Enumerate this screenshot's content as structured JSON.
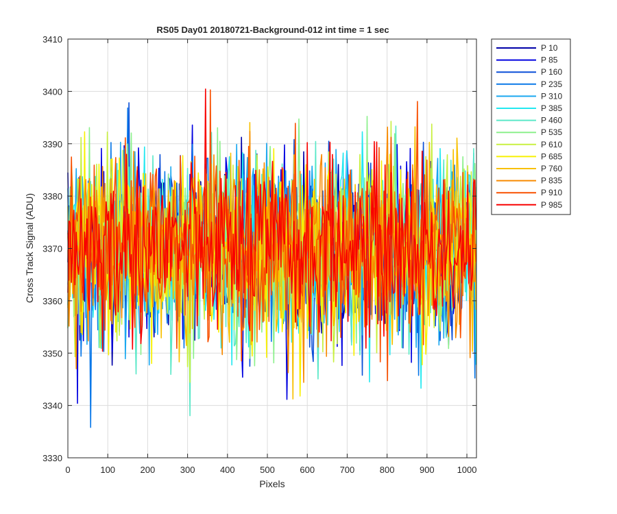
{
  "chart_data": {
    "type": "line",
    "title": "RS05 Day01 20180721-Background-012 int time = 1 sec",
    "xlabel": "Pixels",
    "ylabel": "Cross Track Signal (ADU)",
    "xlim": [
      0,
      1024
    ],
    "ylim": [
      3330,
      3410
    ],
    "x_ticks": [
      0,
      100,
      200,
      300,
      400,
      500,
      600,
      700,
      800,
      900,
      1000
    ],
    "y_ticks": [
      3330,
      3340,
      3350,
      3360,
      3370,
      3380,
      3390,
      3400,
      3410
    ],
    "grid": true,
    "legend_position": "outside-right",
    "noise_summary": {
      "mean": 3370,
      "typical_range": [
        3350,
        3390
      ],
      "min_observed": 3334,
      "max_observed": 3408
    },
    "series": [
      {
        "name": "P 10",
        "color": "#0000a8"
      },
      {
        "name": "P 85",
        "color": "#0000e0"
      },
      {
        "name": "P 160",
        "color": "#0a4fd8"
      },
      {
        "name": "P 235",
        "color": "#0a78e8"
      },
      {
        "name": "P 310",
        "color": "#1aa8f0"
      },
      {
        "name": "P 385",
        "color": "#22e8f0"
      },
      {
        "name": "P 460",
        "color": "#5ae8c8"
      },
      {
        "name": "P 535",
        "color": "#8cf08c"
      },
      {
        "name": "P 610",
        "color": "#c8f040"
      },
      {
        "name": "P 685",
        "color": "#f8f000"
      },
      {
        "name": "P 760",
        "color": "#f8c000"
      },
      {
        "name": "P 835",
        "color": "#f88a00"
      },
      {
        "name": "P 910",
        "color": "#f85000"
      },
      {
        "name": "P 985",
        "color": "#f80000"
      }
    ]
  }
}
